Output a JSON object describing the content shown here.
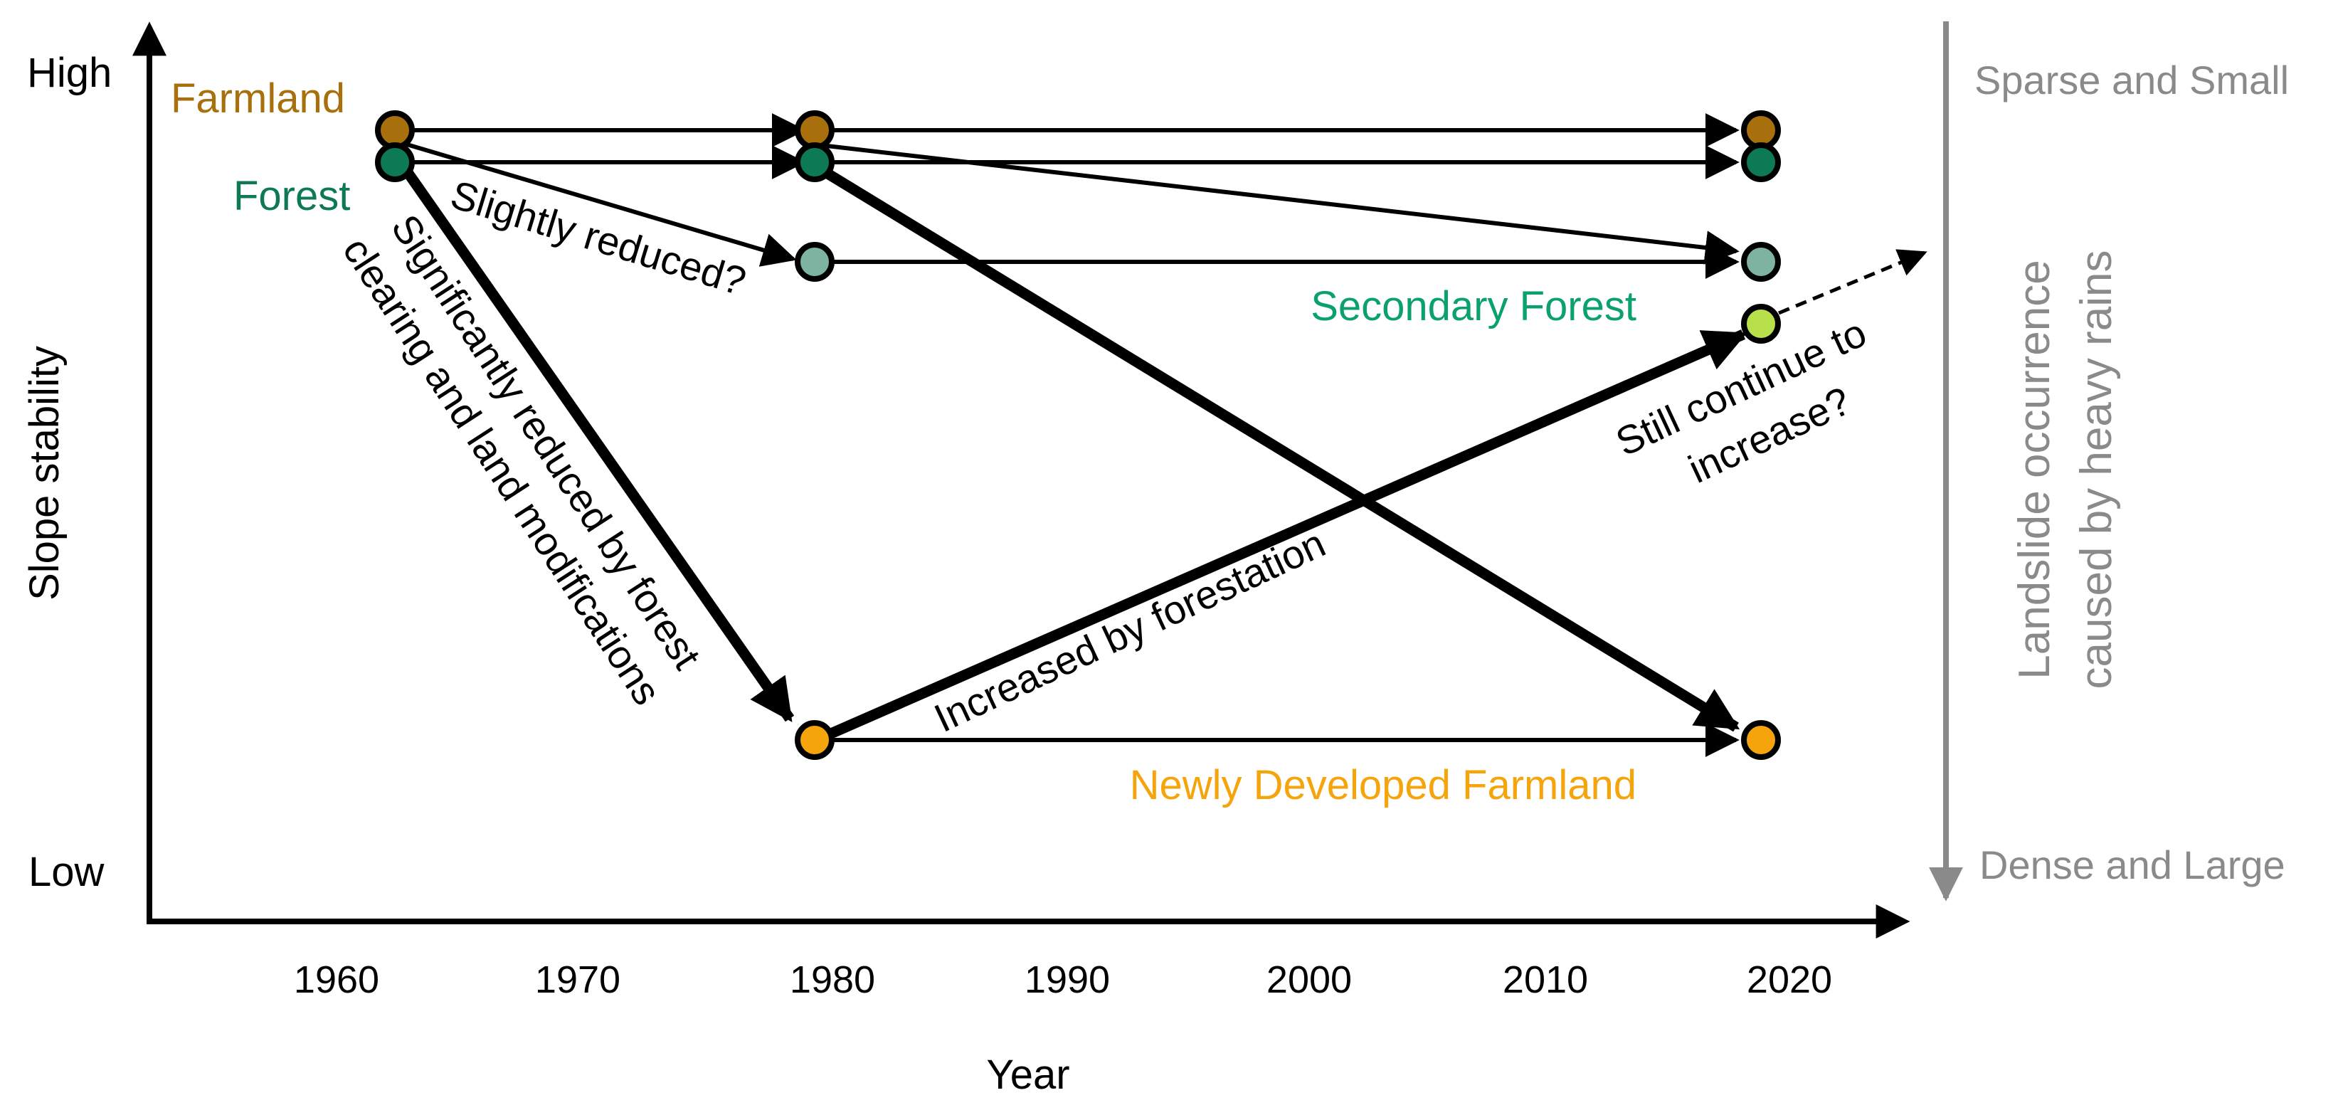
{
  "axes": {
    "x_label": "Year",
    "y_label": "Slope stability",
    "y_high": "High",
    "y_low": "Low",
    "x_ticks": [
      "1960",
      "1970",
      "1980",
      "1990",
      "2000",
      "2010",
      "2020"
    ]
  },
  "right_scale": {
    "label_line1": "Landslide occurrence",
    "label_line2": "caused by heavy rains",
    "top": "Sparse and Small",
    "bottom": "Dense and Large"
  },
  "categories": {
    "farmland": {
      "label": "Farmland",
      "color": "#a8700c"
    },
    "forest": {
      "label": "Forest",
      "color": "#0e7a55"
    },
    "secondary_forest": {
      "label": "Secondary Forest",
      "color": "#0aa070"
    },
    "newly_developed_farmland": {
      "label": "Newly Developed Farmland",
      "color": "#f5a40c"
    }
  },
  "annotations": {
    "slightly_reduced": "Slightly reduced?",
    "significantly_line1": "Significantly reduced by forest",
    "significantly_line2": "clearing and land modifications",
    "increased": "Increased by forestation",
    "still_line1": "Still continue to",
    "still_line2": "increase?"
  },
  "node_colors": {
    "farmland": "#a8700c",
    "forest": "#0e7a55",
    "secondary_forest": "#7fb3a1",
    "newly_developed_farmland": "#f5a40c",
    "recovering_forest": "#b8e04a"
  },
  "colors": {
    "axis": "#000000",
    "scale_gray": "#8a8a8a"
  }
}
